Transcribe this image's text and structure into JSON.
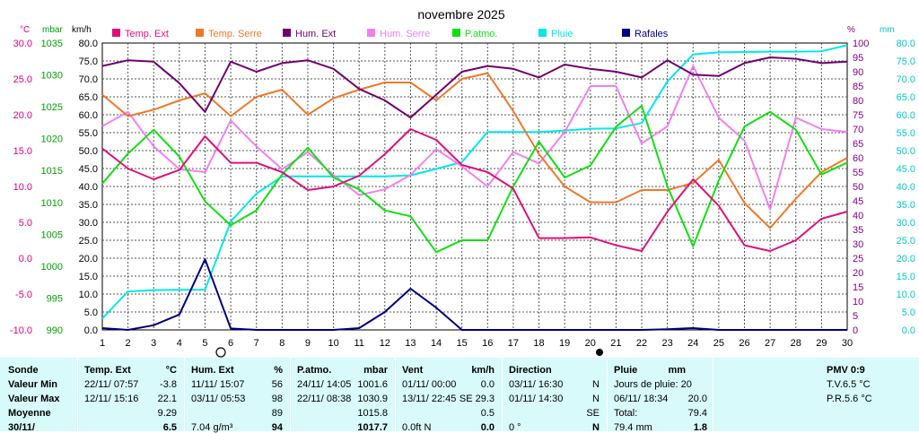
{
  "chart_data": {
    "type": "line",
    "title": "novembre 2025",
    "x": [
      1,
      2,
      3,
      4,
      5,
      6,
      7,
      8,
      9,
      10,
      11,
      12,
      13,
      14,
      15,
      16,
      17,
      18,
      19,
      20,
      21,
      22,
      23,
      24,
      25,
      26,
      27,
      28,
      29,
      30
    ],
    "axes": {
      "temp": {
        "label": "°C",
        "ticks": [
          "30.0",
          "25.0",
          "20.0",
          "15.0",
          "10.0",
          "5.0",
          "0.0",
          "-5.0",
          "-10.0"
        ],
        "color": "#e0007a"
      },
      "press": {
        "label": "mbar",
        "ticks": [
          "1035",
          "1030",
          "1025",
          "1020",
          "1015",
          "1010",
          "1005",
          "1000",
          "995",
          "990"
        ],
        "color": "#00a000"
      },
      "wind": {
        "label": "km/h",
        "ticks": [
          "80.0",
          "75.0",
          "70.0",
          "65.0",
          "60.0",
          "55.0",
          "50.0",
          "45.0",
          "40.0",
          "35.0",
          "30.0",
          "25.0",
          "20.0",
          "15.0",
          "10.0",
          "5.0",
          "0.0"
        ],
        "color": "#000000"
      },
      "hum": {
        "label": "%",
        "ticks": [
          "100",
          "95",
          "90",
          "85",
          "80",
          "75",
          "70",
          "65",
          "60",
          "55",
          "50",
          "45",
          "40",
          "35",
          "30",
          "25",
          "20",
          "15",
          "10",
          "5",
          "0"
        ],
        "color": "#800080"
      },
      "rain": {
        "label": "mm",
        "ticks": [
          "80.0",
          "75.0",
          "70.0",
          "65.0",
          "60.0",
          "55.0",
          "50.0",
          "45.0",
          "40.0",
          "35.0",
          "30.0",
          "25.0",
          "20.0",
          "15.0",
          "10.0",
          "5.0",
          "0.0"
        ],
        "color": "#00c8c8"
      }
    },
    "xlabels": [
      "1",
      "2",
      "3",
      "4",
      "5",
      "6",
      "7",
      "8",
      "9",
      "10",
      "11",
      "12",
      "13",
      "14",
      "15",
      "16",
      "17",
      "18",
      "19",
      "20",
      "21",
      "22",
      "23",
      "24",
      "25",
      "26",
      "27",
      "28",
      "29",
      "30"
    ],
    "grid": true,
    "legend": "top",
    "series": [
      {
        "name": "Temp. Ext",
        "color": "#e0107a",
        "values": [
          15.3,
          12.5,
          11.0,
          12.3,
          17.0,
          13.3,
          13.3,
          12.0,
          9.5,
          10.0,
          11.5,
          14.5,
          18.0,
          16.5,
          13.0,
          12.0,
          9.7,
          2.8,
          2.8,
          2.9,
          1.8,
          1.0,
          6.5,
          11.0,
          7.3,
          1.8,
          1.0,
          2.5,
          5.5,
          6.5
        ]
      },
      {
        "name": "Temp. Serre",
        "color": "#f07828",
        "values": [
          22.8,
          19.8,
          20.7,
          22.0,
          23.0,
          19.8,
          22.5,
          23.5,
          20.0,
          22.3,
          23.5,
          24.5,
          24.5,
          22.0,
          25.0,
          25.8,
          20.5,
          14.5,
          10.0,
          7.8,
          7.8,
          9.5,
          9.5,
          10.5,
          13.7,
          7.7,
          4.2,
          8.3,
          12.0,
          14.0
        ]
      },
      {
        "name": "Hum. Ext",
        "color": "#700070",
        "values": [
          92,
          94,
          93.5,
          86,
          76,
          93.5,
          90,
          93,
          94,
          91,
          84,
          80,
          74,
          82,
          90,
          92,
          91,
          88,
          92.5,
          91,
          90,
          88,
          94,
          89,
          88.5,
          93,
          95,
          94.5,
          93,
          93.5
        ]
      },
      {
        "name": "Hum. Serre",
        "color": "#f080f0",
        "values": [
          71,
          76,
          64,
          56,
          55,
          73,
          64,
          56,
          62,
          54,
          47,
          49,
          54,
          63,
          57,
          50,
          62,
          58,
          69,
          85,
          85,
          65,
          71,
          92,
          74,
          66,
          42,
          74,
          70,
          69
        ]
      },
      {
        "name": "P.atmo.",
        "color": "#10e010",
        "values": [
          1014.5,
          1019.5,
          1023.5,
          1019,
          1011.5,
          1007.5,
          1010,
          1016,
          1020.5,
          1015.5,
          1013.5,
          1010,
          1009,
          1003,
          1005,
          1005,
          1014,
          1021.5,
          1015.5,
          1017.5,
          1024,
          1027.5,
          1014,
          1004,
          1015,
          1024,
          1026.5,
          1023.5,
          1016,
          1018
        ]
      },
      {
        "name": "Pluie",
        "color": "#00e8e8",
        "values": [
          3.2,
          10.7,
          11.1,
          11.2,
          11.2,
          30.2,
          38.0,
          42.8,
          42.8,
          42.8,
          42.8,
          42.8,
          43.1,
          44.9,
          46.8,
          55.2,
          55.2,
          55.2,
          55.6,
          56.1,
          56.2,
          57.7,
          69.3,
          76.8,
          77.4,
          77.5,
          77.6,
          77.6,
          77.7,
          79.4
        ]
      },
      {
        "name": "Rafales",
        "color": "#000080",
        "values": [
          0.5,
          0.0,
          1.3,
          4.3,
          19.7,
          0.4,
          0.0,
          0.0,
          0.0,
          0.0,
          0.5,
          5.0,
          11.5,
          6.2,
          0.0,
          0.0,
          0.0,
          0.0,
          0.0,
          0.0,
          0.0,
          0.0,
          0.2,
          0.5,
          0.0,
          0.0,
          0.0,
          0.0,
          0.0,
          0.0
        ]
      }
    ]
  },
  "table": {
    "col0": {
      "title": "Sonde",
      "rows": [
        "Valeur Min",
        "Valeur Max",
        "Moyenne",
        "30/11/"
      ]
    },
    "col1": {
      "title": "Temp. Ext",
      "unit": "°C",
      "rows": [
        [
          "22/11/ 07:57",
          "-3.8"
        ],
        [
          "12/11/ 15:16",
          "22.1"
        ],
        [
          "",
          "9.29"
        ],
        [
          "",
          "6.5"
        ]
      ]
    },
    "col2": {
      "title": "Hum. Ext",
      "unit": "%",
      "rows": [
        [
          "11/11/ 15:07",
          "56"
        ],
        [
          "03/11/ 05:53",
          "98"
        ],
        [
          "",
          "89"
        ],
        [
          "7.04 g/m³",
          "94"
        ]
      ]
    },
    "col3": {
      "title": "P.atmo.",
      "unit": "mbar",
      "rows": [
        [
          "24/11/ 14:05",
          "1001.6"
        ],
        [
          "22/11/ 08:38",
          "1030.9"
        ],
        [
          "",
          "1015.8"
        ],
        [
          "",
          "1017.7"
        ]
      ]
    },
    "col4": {
      "title": "Vent",
      "unit": "km/h",
      "rows": [
        [
          "01/11/ 00:00",
          "0.0"
        ],
        [
          "13/11/ 22:45",
          "SE 29.3"
        ],
        [
          "",
          "0.5"
        ],
        [
          "0.0ft N",
          "0.0"
        ]
      ]
    },
    "col5": {
      "title": "Direction",
      "rows": [
        [
          "03/11/ 16:30",
          "N"
        ],
        [
          "01/11/ 14:30",
          "N"
        ],
        [
          "",
          "SE"
        ],
        [
          "0 °",
          "N"
        ]
      ]
    },
    "col6": {
      "title": "Pluie",
      "unit": "mm",
      "rows": [
        [
          "Jours de pluie: 20",
          ""
        ],
        [
          "06/11/ 18:34",
          "20.0"
        ],
        [
          "Total:",
          "79.4"
        ],
        [
          "79.4 mm",
          "1.8"
        ]
      ]
    },
    "col7": {
      "title": "PMV 0:9",
      "rows": [
        "T.V.6.5 °C",
        "P.R.5.6 °C"
      ]
    }
  }
}
